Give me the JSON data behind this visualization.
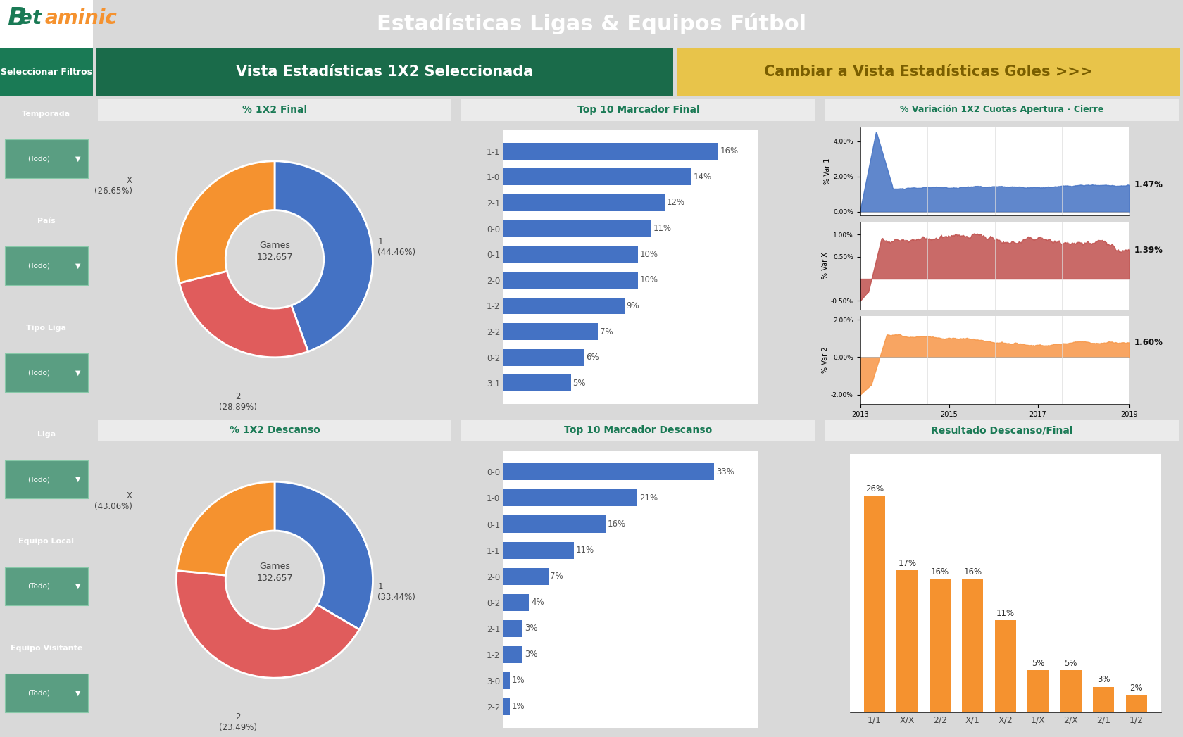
{
  "title": "Estadísticas Ligas & Equipos Fútbol",
  "title_bg": "#1a6b4a",
  "sidebar_bg": "#1a7a55",
  "sidebar_title": "Seleccionar Filtros",
  "filter_labels": [
    "Temporada",
    "País",
    "Tipo Liga",
    "Liga",
    "Equipo Local",
    "Equipo Visitante"
  ],
  "filter_box_color": "#5a9e82",
  "btn_left_text": "Vista Estadísticas 1X2 Seleccionada",
  "btn_left_bg": "#1a6b4a",
  "btn_right_text": "Cambiar a Vista Estadísticas Goles >>>",
  "btn_right_bg": "#e8c44a",
  "btn_right_fg": "#7a5e00",
  "panel_bg": "#f5f5f5",
  "chart_bg": "white",
  "donut1_title": "% 1X2 Final",
  "donut1_values": [
    44.46,
    26.65,
    28.89
  ],
  "donut1_colors": [
    "#4472c4",
    "#e05c5c",
    "#f5922f"
  ],
  "donut1_center": "Games\n132,657",
  "donut1_pct_labels": [
    "1\n(44.46%)",
    "X\n(26.65%)",
    "2\n(28.89%)"
  ],
  "bar1_title": "Top 10 Marcador Final",
  "bar1_cats": [
    "1-1",
    "1-0",
    "2-1",
    "0-0",
    "0-1",
    "2-0",
    "1-2",
    "2-2",
    "0-2",
    "3-1"
  ],
  "bar1_vals": [
    16,
    14,
    12,
    11,
    10,
    10,
    9,
    7,
    6,
    5
  ],
  "bar1_color": "#4472c4",
  "var_title": "% Variación 1X2 Cuotas Apertura - Cierre",
  "var1_label": "% Var 1",
  "var2_label": "% Var X",
  "var3_label": "% Var 2",
  "var1_color": "#4472c4",
  "var2_color": "#c0504d",
  "var3_color": "#f79646",
  "var1_end_val": "1.47%",
  "var2_end_val": "1.39%",
  "var3_end_val": "1.60%",
  "var_xticks": [
    "2013",
    "2015",
    "2017",
    "2019"
  ],
  "donut2_title": "% 1X2 Descanso",
  "donut2_values": [
    33.44,
    43.06,
    23.49
  ],
  "donut2_colors": [
    "#4472c4",
    "#e05c5c",
    "#f5922f"
  ],
  "donut2_center": "Games\n132,657",
  "donut2_pct_labels": [
    "1\n(33.44%)",
    "X\n(43.06%)",
    "2\n(23.49%)"
  ],
  "bar2_title": "Top 10 Marcador Descanso",
  "bar2_cats": [
    "0-0",
    "1-0",
    "0-1",
    "1-1",
    "2-0",
    "0-2",
    "2-1",
    "1-2",
    "3-0",
    "2-2"
  ],
  "bar2_vals": [
    33,
    21,
    16,
    11,
    7,
    4,
    3,
    3,
    1,
    1
  ],
  "bar2_color": "#4472c4",
  "bar3_title": "Resultado Descanso/Final",
  "bar3_cats": [
    "1/1",
    "X/X",
    "2/2",
    "X/1",
    "X/2",
    "1/X",
    "2/X",
    "2/1",
    "1/2"
  ],
  "bar3_vals": [
    26,
    17,
    16,
    16,
    11,
    5,
    5,
    3,
    2
  ],
  "bar3_color": "#f5922f"
}
